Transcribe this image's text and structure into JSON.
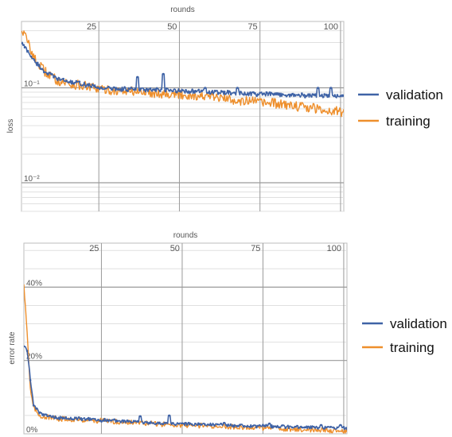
{
  "colors": {
    "validation": "#3f63a6",
    "training": "#ee8f2c",
    "major_grid": "#9a9a9a",
    "minor_grid": "#e0e0e0",
    "frame": "#bdbdbd"
  },
  "chart_data": [
    {
      "type": "line",
      "xlabel": "rounds",
      "ylabel": "loss",
      "x_ticks": [
        "25",
        "50",
        "75",
        "100"
      ],
      "y_ticks": [
        "10⁻¹",
        "10⁻²"
      ],
      "y_scale": "log",
      "xlim": [
        1,
        101
      ],
      "ylim": [
        0.005,
        0.5
      ],
      "grid": true,
      "legend": "right",
      "series": [
        {
          "name": "validation",
          "color": "#3f63a6",
          "anchors": [
            [
              1,
              0.3
            ],
            [
              3,
              0.24
            ],
            [
              5,
              0.19
            ],
            [
              8,
              0.15
            ],
            [
              12,
              0.125
            ],
            [
              16,
              0.115
            ],
            [
              20,
              0.11
            ],
            [
              25,
              0.1
            ],
            [
              30,
              0.098
            ],
            [
              40,
              0.095
            ],
            [
              50,
              0.093
            ],
            [
              60,
              0.09
            ],
            [
              70,
              0.087
            ],
            [
              80,
              0.085
            ],
            [
              90,
              0.083
            ],
            [
              101,
              0.082
            ]
          ],
          "spikes": [
            [
              37,
              0.13
            ],
            [
              45,
              0.14
            ],
            [
              58,
              0.1
            ],
            [
              68,
              0.1
            ],
            [
              93,
              0.1
            ],
            [
              97,
              0.1
            ]
          ]
        },
        {
          "name": "training",
          "color": "#ee8f2c",
          "anchors": [
            [
              1,
              0.42
            ],
            [
              3,
              0.3
            ],
            [
              5,
              0.2
            ],
            [
              8,
              0.15
            ],
            [
              12,
              0.12
            ],
            [
              16,
              0.11
            ],
            [
              20,
              0.105
            ],
            [
              25,
              0.097
            ],
            [
              30,
              0.093
            ],
            [
              40,
              0.09
            ],
            [
              50,
              0.085
            ],
            [
              60,
              0.08
            ],
            [
              70,
              0.073
            ],
            [
              80,
              0.068
            ],
            [
              90,
              0.062
            ],
            [
              101,
              0.055
            ]
          ]
        }
      ]
    },
    {
      "type": "line",
      "xlabel": "rounds",
      "ylabel": "error rate",
      "x_ticks": [
        "25",
        "50",
        "75",
        "100"
      ],
      "y_ticks": [
        "40%",
        "20%",
        "0%"
      ],
      "xlim": [
        1,
        101
      ],
      "ylim": [
        0,
        0.52
      ],
      "grid": true,
      "legend": "right",
      "series": [
        {
          "name": "validation",
          "color": "#3f63a6",
          "anchors": [
            [
              1,
              0.24
            ],
            [
              2,
              0.23
            ],
            [
              3,
              0.15
            ],
            [
              4,
              0.08
            ],
            [
              6,
              0.055
            ],
            [
              10,
              0.045
            ],
            [
              20,
              0.04
            ],
            [
              30,
              0.035
            ],
            [
              40,
              0.03
            ],
            [
              50,
              0.027
            ],
            [
              60,
              0.025
            ],
            [
              70,
              0.022
            ],
            [
              80,
              0.02
            ],
            [
              90,
              0.018
            ],
            [
              101,
              0.016
            ]
          ],
          "spikes": [
            [
              37,
              0.048
            ],
            [
              46,
              0.05
            ],
            [
              63,
              0.03
            ],
            [
              77,
              0.028
            ],
            [
              93,
              0.024
            ],
            [
              99,
              0.024
            ]
          ]
        },
        {
          "name": "training",
          "color": "#ee8f2c",
          "anchors": [
            [
              1,
              0.41
            ],
            [
              2,
              0.28
            ],
            [
              3,
              0.12
            ],
            [
              4,
              0.07
            ],
            [
              6,
              0.05
            ],
            [
              10,
              0.042
            ],
            [
              20,
              0.038
            ],
            [
              30,
              0.033
            ],
            [
              40,
              0.028
            ],
            [
              50,
              0.024
            ],
            [
              60,
              0.021
            ],
            [
              70,
              0.018
            ],
            [
              80,
              0.014
            ],
            [
              90,
              0.011
            ],
            [
              101,
              0.008
            ]
          ]
        }
      ]
    }
  ]
}
